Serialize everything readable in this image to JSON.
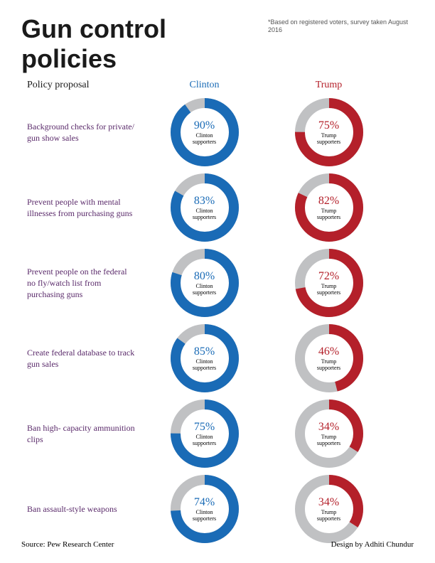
{
  "title": "Gun control policies",
  "footnote": "*Based on registered voters, survey taken August 2016",
  "headers": {
    "policy": "Policy proposal",
    "clinton": {
      "label": "Clinton",
      "color": "#1a6bb6"
    },
    "trump": {
      "label": "Trump",
      "color": "#b4202a"
    }
  },
  "policy_label_color": "#5a2a6a",
  "supporter_labels": {
    "clinton": "Clinton supporters",
    "trump": "Trump supporters"
  },
  "donut": {
    "size": 96,
    "stroke_width": 14,
    "track_color": "#c0c1c3",
    "clinton_color": "#1a6bb6",
    "trump_color": "#b4202a"
  },
  "rows": [
    {
      "policy": "Background checks for private/ gun show sales",
      "clinton": 90,
      "trump": 75
    },
    {
      "policy": "Prevent people with mental illnesses from purchasing guns",
      "clinton": 83,
      "trump": 82
    },
    {
      "policy": "Prevent people on the federal no fly/watch list from purchasing guns",
      "clinton": 80,
      "trump": 72
    },
    {
      "policy": "Create federal database to track gun sales",
      "clinton": 85,
      "trump": 46
    },
    {
      "policy": "Ban high- capacity ammunition clips",
      "clinton": 75,
      "trump": 34
    },
    {
      "policy": "Ban assault-style weapons",
      "clinton": 74,
      "trump": 34
    }
  ],
  "footer": {
    "source": "Source: Pew Research Center",
    "credit": "Design by Adhiti Chundur"
  }
}
